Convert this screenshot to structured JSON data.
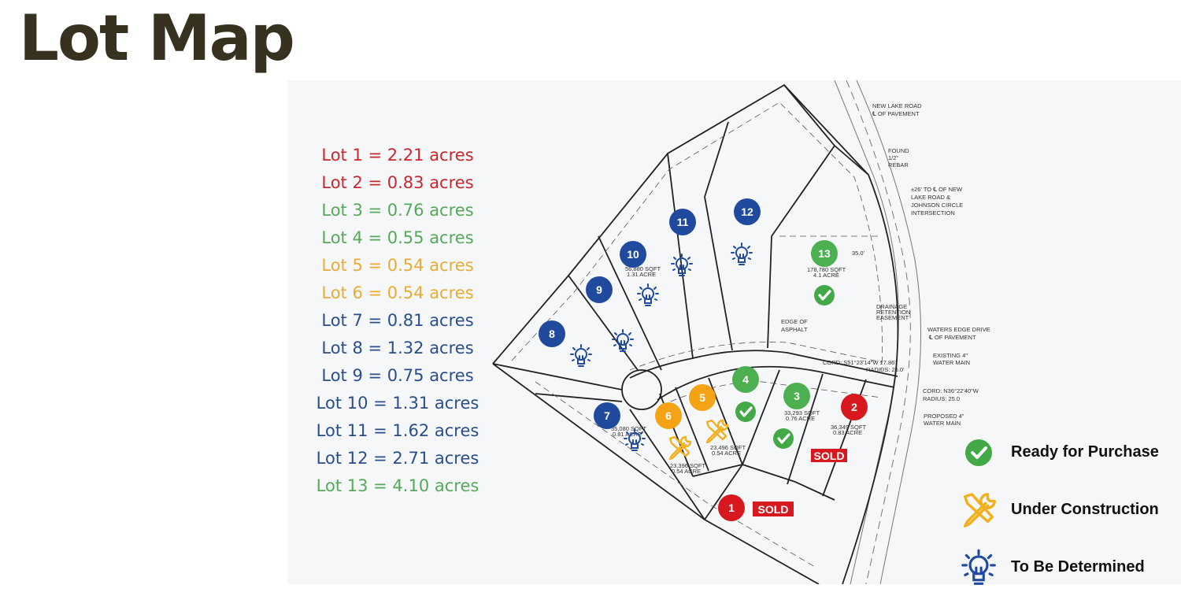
{
  "title": "Lot Map",
  "colors": {
    "sold": "#d7191f",
    "ready": "#4caf50",
    "construction": "#f5a316",
    "tbd": "#1f4a9e",
    "title": "#37321f"
  },
  "lots": [
    {
      "label": "Lot 1 = 2.21 acres",
      "number": "1",
      "status": "sold",
      "color": "#c8282e"
    },
    {
      "label": "Lot 2 = 0.83 acres",
      "number": "2",
      "status": "sold",
      "color": "#c8282e"
    },
    {
      "label": "Lot 3 = 0.76 acres",
      "number": "3",
      "status": "ready",
      "color": "#56a95a"
    },
    {
      "label": "Lot 4 = 0.55 acres",
      "number": "4",
      "status": "ready",
      "color": "#56a95a"
    },
    {
      "label": "Lot 5 = 0.54 acres",
      "number": "5",
      "status": "construction",
      "color": "#e8ac36"
    },
    {
      "label": "Lot 6 = 0.54 acres",
      "number": "6",
      "status": "construction",
      "color": "#e8ac36"
    },
    {
      "label": "Lot 7 = 0.81 acres",
      "number": "7",
      "status": "tbd",
      "color": "#2a4e8c"
    },
    {
      "label": "Lot 8 = 1.32 acres",
      "number": "8",
      "status": "tbd",
      "color": "#2a4e8c"
    },
    {
      "label": "Lot 9 = 0.75 acres",
      "number": "9",
      "status": "tbd",
      "color": "#2a4e8c"
    },
    {
      "label": "Lot 10 = 1.31 acres",
      "number": "10",
      "status": "tbd",
      "color": "#2a4e8c"
    },
    {
      "label": "Lot 11 = 1.62 acres",
      "number": "11",
      "status": "tbd",
      "color": "#2a4e8c"
    },
    {
      "label": "Lot 12 = 2.71 acres",
      "number": "12",
      "status": "tbd",
      "color": "#2a4e8c"
    },
    {
      "label": "Lot 13 = 4.10 acres",
      "number": "13",
      "status": "ready",
      "color": "#56a95a"
    }
  ],
  "sold_badge": "SOLD",
  "legend": [
    {
      "label": "Ready for Purchase",
      "icon": "check-circle-icon"
    },
    {
      "label": "Under Construction",
      "icon": "tools-icon"
    },
    {
      "label": "To Be Determined",
      "icon": "lightbulb-icon"
    }
  ],
  "map": {
    "annotations": {
      "new_lake_road_1": "NEW LAKE ROAD",
      "new_lake_road_2": "℄ OF PAVEMENT",
      "rebar_1": "FOUND",
      "rebar_2": "1/2\"",
      "rebar_3": "REBAR",
      "intersection_1": "±26' TO ℄ OF NEW",
      "intersection_2": "LAKE ROAD &",
      "intersection_3": "JOHNSON CIRCLE",
      "intersection_4": "INTERSECTION",
      "asphalt_1": "EDGE OF",
      "asphalt_2": "ASPHALT",
      "waters_edge_1": "WATERS EDGE DRIVE",
      "waters_edge_2": "℄ OF PAVEMENT",
      "existing_main_1": "EXISTING 4\"",
      "existing_main_2": "WATER MAIN",
      "cord_1": "CORD: S51°23'14\"W 17.86'",
      "radius_1": "RADIUS: 25.0'",
      "cord_2": "CORD: N36°22'40\"W",
      "radius_2": "RADIUS: 25.0",
      "proposed_main_1": "PROPOSED 4\"",
      "proposed_main_2": "WATER MAIN",
      "drainage_1": "DRAINAGE",
      "drainage_2": "RETENTION",
      "drainage_3": "EASEMENT",
      "setback_35": "35.0'",
      "lot13_area_1": "178,780 SQFT",
      "lot13_area_2": "4.1 ACRE",
      "lot3_area_1": "33,293 SQFT",
      "lot3_area_2": "0.76 ACRE",
      "lot2_area_1": "36,349 SQFT",
      "lot2_area_2": "0.83 ACRE",
      "lot5_area_1": "23,496 SQFT",
      "lot5_area_2": "0.54 ACRE",
      "lot6_area_1": "23,396 SQFT",
      "lot6_area_2": "0.54 ACRE",
      "lot7_area_1": "35,080 SQFT",
      "lot7_area_2": "0.81 ACRE",
      "lot10_area_1": "56,880 SQFT",
      "lot10_area_2": "1.31 ACRE"
    }
  }
}
